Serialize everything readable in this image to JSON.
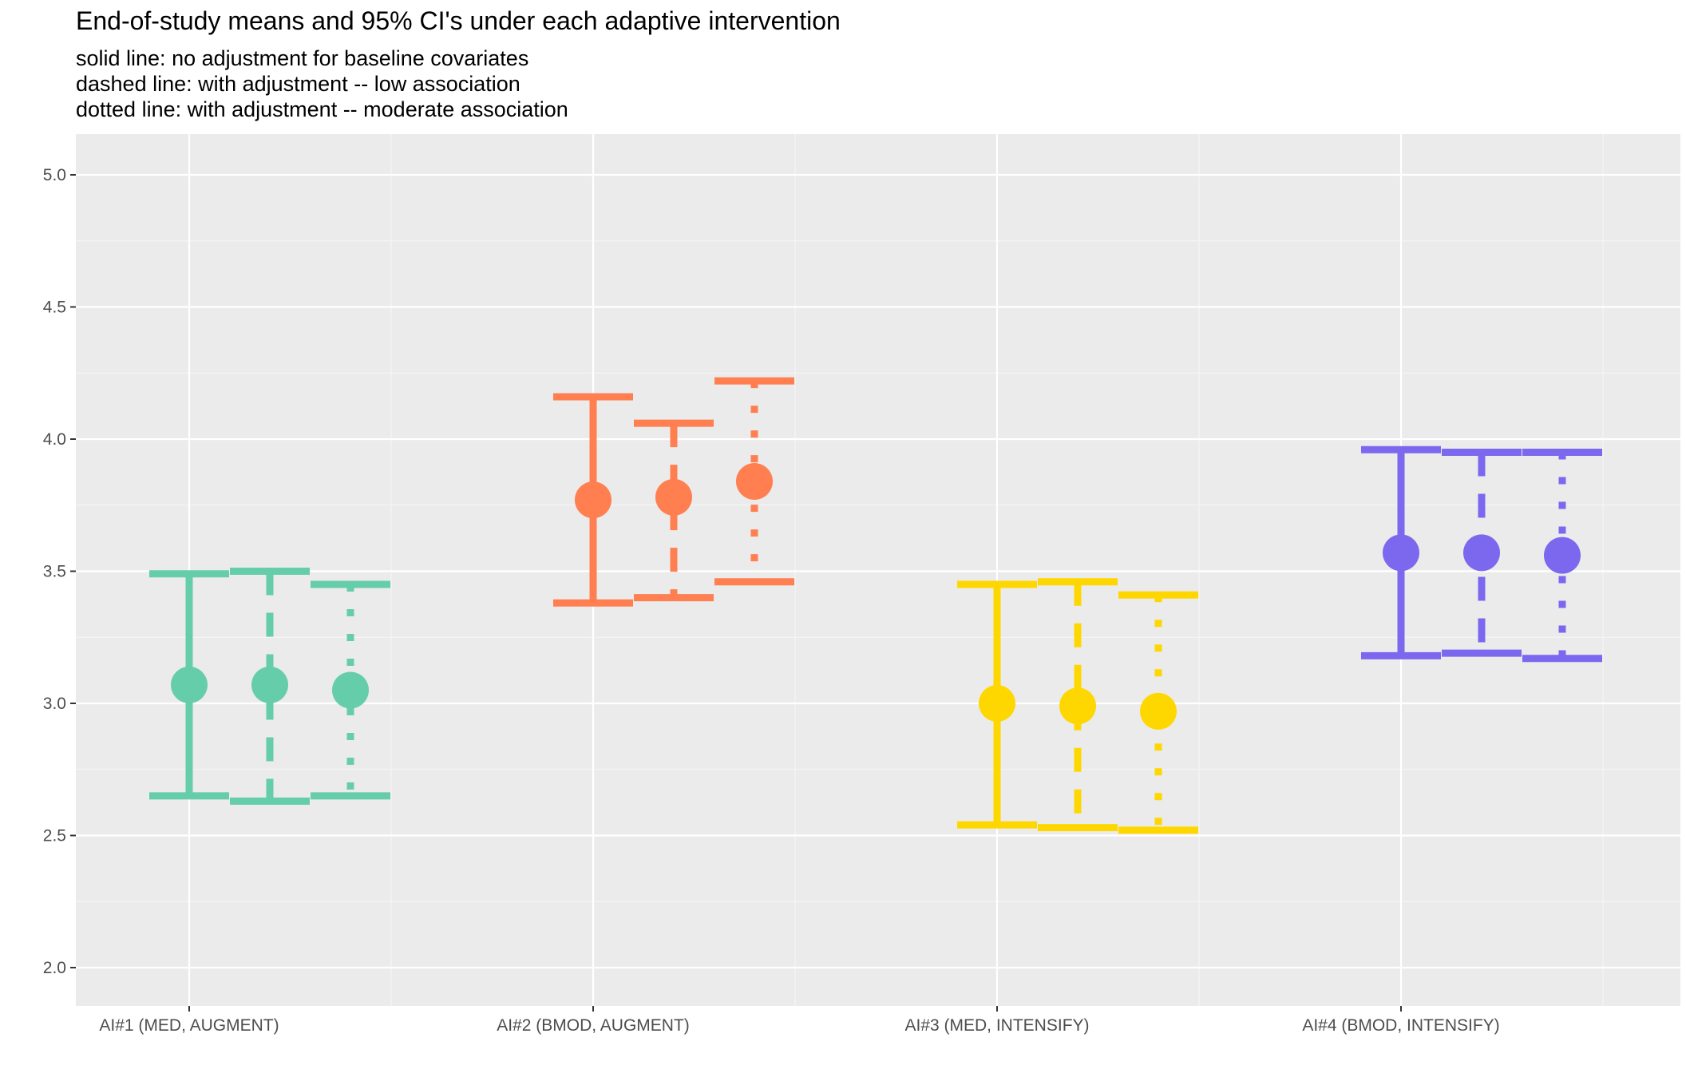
{
  "chart_data": {
    "type": "errorbar",
    "title": "End-of-study means and 95% CI's under each adaptive intervention",
    "subtitle": [
      "solid line: no adjustment for baseline covariates",
      "dashed line: with adjustment -- low association",
      "dotted line: with adjustment -- moderate association"
    ],
    "xlabel": "",
    "ylabel": "",
    "ylim": [
      1.95,
      5.15
    ],
    "yticks": [
      2.0,
      2.5,
      3.0,
      3.5,
      4.0,
      4.5,
      5.0
    ],
    "ytick_labels": [
      "2.0",
      "2.5",
      "3.0",
      "3.5",
      "4.0",
      "4.5",
      "5.0"
    ],
    "grid": true,
    "categories": [
      "AI#1 (MED, AUGMENT)",
      "AI#2 (BMOD, AUGMENT)",
      "AI#3 (MED, INTENSIFY)",
      "AI#4 (BMOD, INTENSIFY)"
    ],
    "colors": [
      "#66CDAA",
      "#FF7F50",
      "#FFD700",
      "#7B68EE"
    ],
    "series": [
      {
        "linestyle": "solid",
        "mean": [
          3.07,
          3.77,
          3.0,
          3.57
        ],
        "lower": [
          2.65,
          3.38,
          2.54,
          3.18
        ],
        "upper": [
          3.49,
          4.16,
          3.45,
          3.96
        ]
      },
      {
        "linestyle": "dashed",
        "mean": [
          3.07,
          3.78,
          2.99,
          3.57
        ],
        "lower": [
          2.63,
          3.4,
          2.53,
          3.19
        ],
        "upper": [
          3.5,
          4.06,
          3.46,
          3.95
        ]
      },
      {
        "linestyle": "dotted",
        "mean": [
          3.05,
          3.84,
          2.97,
          3.56
        ],
        "lower": [
          2.65,
          3.46,
          2.52,
          3.17
        ],
        "upper": [
          3.45,
          4.22,
          3.41,
          3.95
        ]
      }
    ]
  }
}
